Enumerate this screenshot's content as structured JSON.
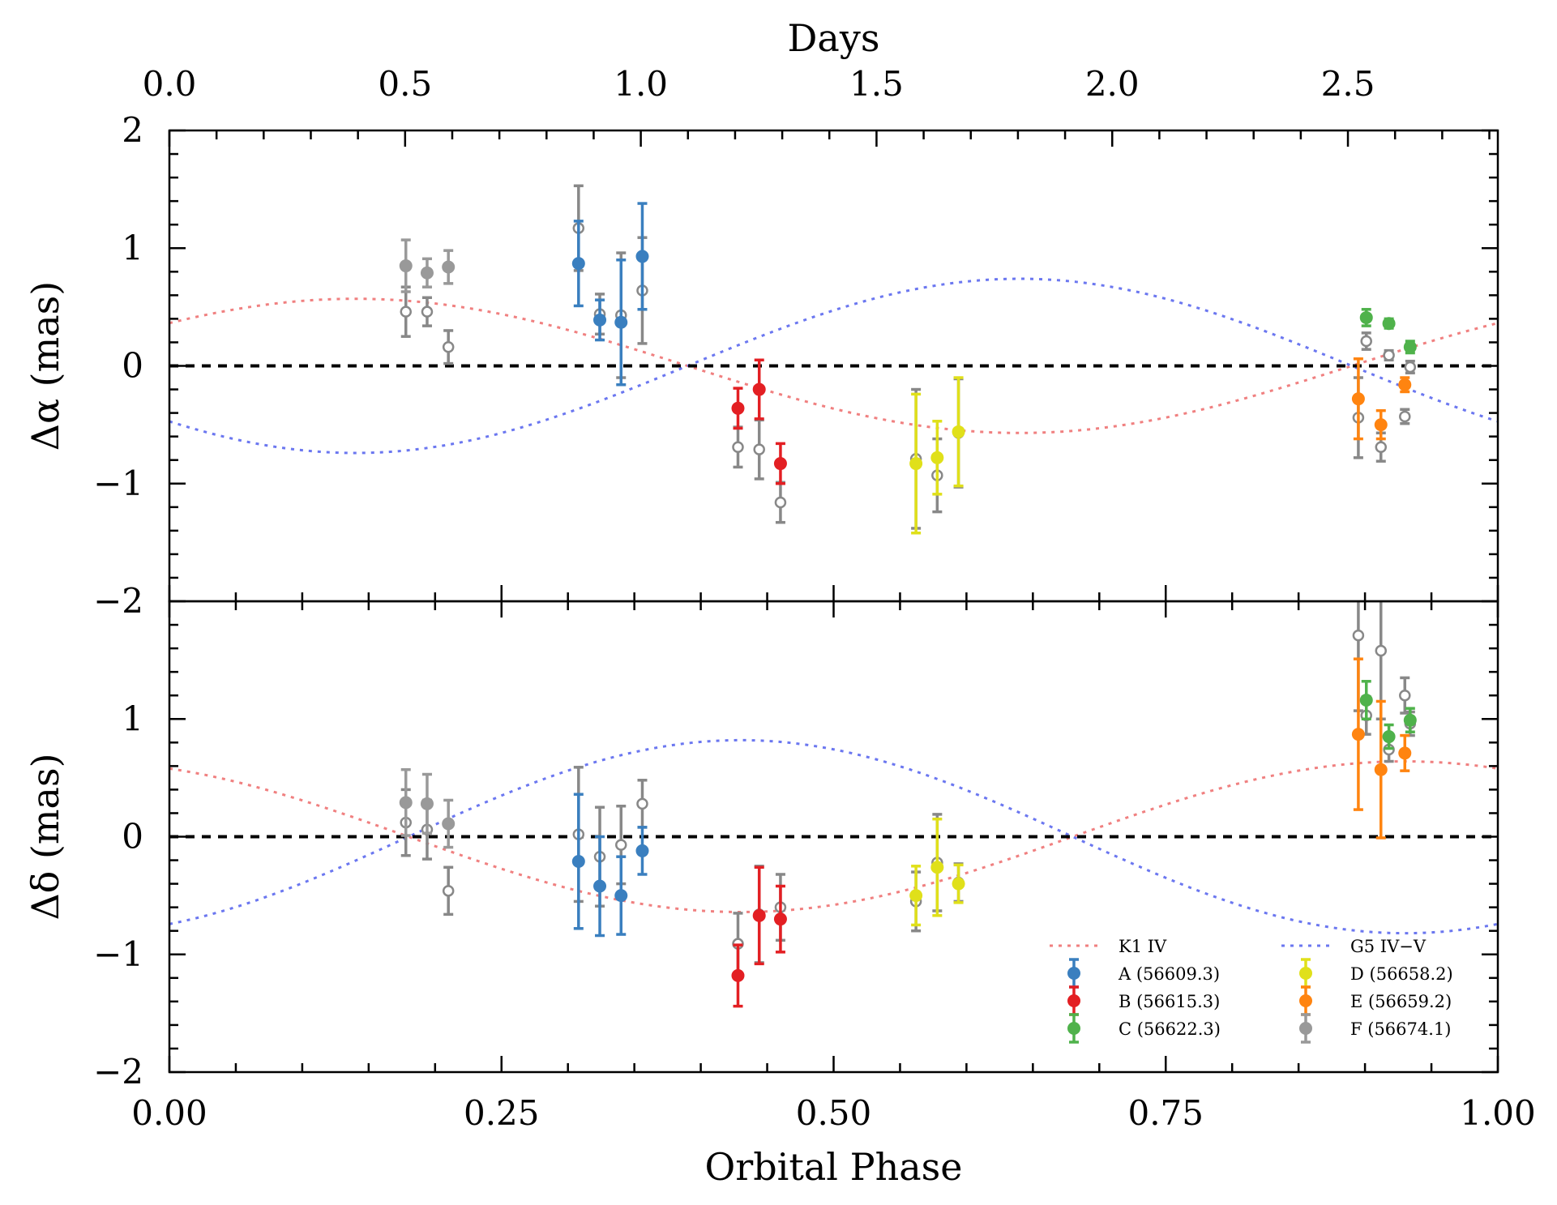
{
  "chart_data": {
    "type": "scatter",
    "top_axis": {
      "label": "Days",
      "ticks": [
        "0.0",
        "0.5",
        "1.0",
        "1.5",
        "2.0",
        "2.5"
      ],
      "tick_values": [
        0.0,
        0.5,
        1.0,
        1.5,
        2.0,
        2.5
      ],
      "period_days": 2.818
    },
    "x_axis": {
      "label": "Orbital Phase",
      "ticks": [
        "0.00",
        "0.25",
        "0.50",
        "0.75",
        "1.00"
      ],
      "tick_values": [
        0.0,
        0.25,
        0.5,
        0.75,
        1.0
      ],
      "xlim": [
        0.0,
        1.0
      ]
    },
    "panels": [
      {
        "id": "ra",
        "ylabel": "Δα (mas)",
        "ylim": [
          -2,
          2
        ],
        "yticks": [
          "−2",
          "−1",
          "0",
          "1",
          "2"
        ],
        "ytick_values": [
          -2,
          -1,
          0,
          1,
          2
        ],
        "models": [
          {
            "name": "K1 IV",
            "color": "#f08080",
            "amplitude": 0.57,
            "phase_of_max": 0.14
          },
          {
            "name": "G5 IV−V",
            "color": "#6b77f0",
            "amplitude": 0.74,
            "phase_of_max": 0.64
          }
        ],
        "points": [
          {
            "set": "A",
            "x": 0.308,
            "y": 0.87,
            "err": 0.36
          },
          {
            "set": "A",
            "x": 0.324,
            "y": 0.39,
            "err": 0.17
          },
          {
            "set": "A",
            "x": 0.34,
            "y": 0.37,
            "err": 0.53
          },
          {
            "set": "A",
            "x": 0.356,
            "y": 0.93,
            "err": 0.45
          },
          {
            "set": "B",
            "x": 0.428,
            "y": -0.36,
            "err": 0.17
          },
          {
            "set": "B",
            "x": 0.444,
            "y": -0.2,
            "err": 0.25
          },
          {
            "set": "B",
            "x": 0.46,
            "y": -0.83,
            "err": 0.17
          },
          {
            "set": "C",
            "x": 0.901,
            "y": 0.41,
            "err": 0.07
          },
          {
            "set": "C",
            "x": 0.918,
            "y": 0.36,
            "err": 0.04
          },
          {
            "set": "C",
            "x": 0.934,
            "y": 0.16,
            "err": 0.05
          },
          {
            "set": "D",
            "x": 0.562,
            "y": -0.83,
            "err": 0.59
          },
          {
            "set": "D",
            "x": 0.578,
            "y": -0.78,
            "err": 0.31
          },
          {
            "set": "D",
            "x": 0.594,
            "y": -0.56,
            "err": 0.46
          },
          {
            "set": "E",
            "x": 0.895,
            "y": -0.28,
            "err": 0.34
          },
          {
            "set": "E",
            "x": 0.912,
            "y": -0.5,
            "err": 0.12
          },
          {
            "set": "E",
            "x": 0.93,
            "y": -0.16,
            "err": 0.06
          },
          {
            "set": "F",
            "x": 0.178,
            "y": 0.85,
            "err": 0.22
          },
          {
            "set": "F",
            "x": 0.194,
            "y": 0.79,
            "err": 0.12
          },
          {
            "set": "F",
            "x": 0.21,
            "y": 0.84,
            "err": 0.14
          }
        ],
        "open_points": [
          {
            "x": 0.178,
            "y": 0.46,
            "err": 0.21
          },
          {
            "x": 0.194,
            "y": 0.46,
            "err": 0.12
          },
          {
            "x": 0.21,
            "y": 0.16,
            "err": 0.14
          },
          {
            "x": 0.308,
            "y": 1.17,
            "err": 0.36
          },
          {
            "x": 0.324,
            "y": 0.44,
            "err": 0.17
          },
          {
            "x": 0.34,
            "y": 0.43,
            "err": 0.53
          },
          {
            "x": 0.356,
            "y": 0.64,
            "err": 0.45
          },
          {
            "x": 0.428,
            "y": -0.69,
            "err": 0.17
          },
          {
            "x": 0.444,
            "y": -0.71,
            "err": 0.25
          },
          {
            "x": 0.46,
            "y": -1.16,
            "err": 0.17
          },
          {
            "x": 0.562,
            "y": -0.79,
            "err": 0.59
          },
          {
            "x": 0.578,
            "y": -0.93,
            "err": 0.31
          },
          {
            "x": 0.594,
            "y": -0.57,
            "err": 0.46
          },
          {
            "x": 0.895,
            "y": -0.44,
            "err": 0.34
          },
          {
            "x": 0.901,
            "y": 0.21,
            "err": 0.07
          },
          {
            "x": 0.912,
            "y": -0.69,
            "err": 0.12
          },
          {
            "x": 0.918,
            "y": 0.09,
            "err": 0.04
          },
          {
            "x": 0.93,
            "y": -0.43,
            "err": 0.06
          },
          {
            "x": 0.934,
            "y": -0.01,
            "err": 0.05
          }
        ]
      },
      {
        "id": "dec",
        "ylabel": "Δδ (mas)",
        "ylim": [
          -2,
          2
        ],
        "yticks": [
          "−2",
          "−1",
          "0",
          "1"
        ],
        "ytick_values": [
          -2,
          -1,
          0,
          1
        ],
        "models": [
          {
            "name": "K1 IV",
            "color": "#f08080",
            "amplitude": 0.64,
            "phase_of_max": 0.93
          },
          {
            "name": "G5 IV−V",
            "color": "#6b77f0",
            "amplitude": 0.82,
            "phase_of_max": 0.43
          }
        ],
        "points": [
          {
            "set": "A",
            "x": 0.308,
            "y": -0.21,
            "err": 0.57
          },
          {
            "set": "A",
            "x": 0.324,
            "y": -0.42,
            "err": 0.42
          },
          {
            "set": "A",
            "x": 0.34,
            "y": -0.5,
            "err": 0.33
          },
          {
            "set": "A",
            "x": 0.356,
            "y": -0.12,
            "err": 0.2
          },
          {
            "set": "B",
            "x": 0.428,
            "y": -1.18,
            "err": 0.26
          },
          {
            "set": "B",
            "x": 0.444,
            "y": -0.67,
            "err": 0.41
          },
          {
            "set": "B",
            "x": 0.46,
            "y": -0.7,
            "err": 0.28
          },
          {
            "set": "C",
            "x": 0.901,
            "y": 1.16,
            "err": 0.16
          },
          {
            "set": "C",
            "x": 0.918,
            "y": 0.85,
            "err": 0.1
          },
          {
            "set": "C",
            "x": 0.934,
            "y": 0.99,
            "err": 0.1
          },
          {
            "set": "D",
            "x": 0.562,
            "y": -0.5,
            "err": 0.25
          },
          {
            "set": "D",
            "x": 0.578,
            "y": -0.26,
            "err": 0.41
          },
          {
            "set": "D",
            "x": 0.594,
            "y": -0.4,
            "err": 0.16
          },
          {
            "set": "E",
            "x": 0.895,
            "y": 0.87,
            "err": 0.64
          },
          {
            "set": "E",
            "x": 0.912,
            "y": 0.57,
            "err": 0.58
          },
          {
            "set": "E",
            "x": 0.93,
            "y": 0.71,
            "err": 0.15
          },
          {
            "set": "F",
            "x": 0.178,
            "y": 0.29,
            "err": 0.28
          },
          {
            "set": "F",
            "x": 0.194,
            "y": 0.28,
            "err": 0.25
          },
          {
            "set": "F",
            "x": 0.21,
            "y": 0.11,
            "err": 0.2
          }
        ],
        "open_points": [
          {
            "x": 0.178,
            "y": 0.12,
            "err": 0.28
          },
          {
            "x": 0.194,
            "y": 0.06,
            "err": 0.25
          },
          {
            "x": 0.21,
            "y": -0.46,
            "err": 0.2
          },
          {
            "x": 0.308,
            "y": 0.02,
            "err": 0.57
          },
          {
            "x": 0.324,
            "y": -0.17,
            "err": 0.42
          },
          {
            "x": 0.34,
            "y": -0.07,
            "err": 0.33
          },
          {
            "x": 0.356,
            "y": 0.28,
            "err": 0.2
          },
          {
            "x": 0.428,
            "y": -0.91,
            "err": 0.26
          },
          {
            "x": 0.444,
            "y": -0.66,
            "err": 0.41
          },
          {
            "x": 0.46,
            "y": -0.6,
            "err": 0.28
          },
          {
            "x": 0.562,
            "y": -0.55,
            "err": 0.25
          },
          {
            "x": 0.578,
            "y": -0.22,
            "err": 0.41
          },
          {
            "x": 0.594,
            "y": -0.39,
            "err": 0.16
          },
          {
            "x": 0.895,
            "y": 1.71,
            "err": 0.64
          },
          {
            "x": 0.901,
            "y": 1.03,
            "err": 0.16
          },
          {
            "x": 0.912,
            "y": 1.58,
            "err": 0.58
          },
          {
            "x": 0.918,
            "y": 0.74,
            "err": 0.1
          },
          {
            "x": 0.93,
            "y": 1.2,
            "err": 0.15
          },
          {
            "x": 0.934,
            "y": 0.96,
            "err": 0.1
          }
        ]
      }
    ],
    "reference_line": {
      "y": 0,
      "style": "dashed",
      "color": "#000000"
    },
    "sets": [
      {
        "id": "A",
        "label": "A (56609.3)",
        "color": "#3a7fbf"
      },
      {
        "id": "B",
        "label": "B (56615.3)",
        "color": "#e31f23"
      },
      {
        "id": "C",
        "label": "C (56622.3)",
        "color": "#4fb24b"
      },
      {
        "id": "D",
        "label": "D (56658.2)",
        "color": "#e0e01a"
      },
      {
        "id": "E",
        "label": "E (56659.2)",
        "color": "#ff8410"
      },
      {
        "id": "F",
        "label": "F (56674.1)",
        "color": "#999999"
      }
    ],
    "open_point_color": "#888888",
    "legend": {
      "placement": "bottom-right of lower panel",
      "columns": [
        [
          "K1 IV",
          "A (56609.3)",
          "B (56615.3)",
          "C (56622.3)"
        ],
        [
          "G5 IV−V",
          "D (56658.2)",
          "E (56659.2)",
          "F (56674.1)"
        ]
      ]
    },
    "grid": false
  }
}
